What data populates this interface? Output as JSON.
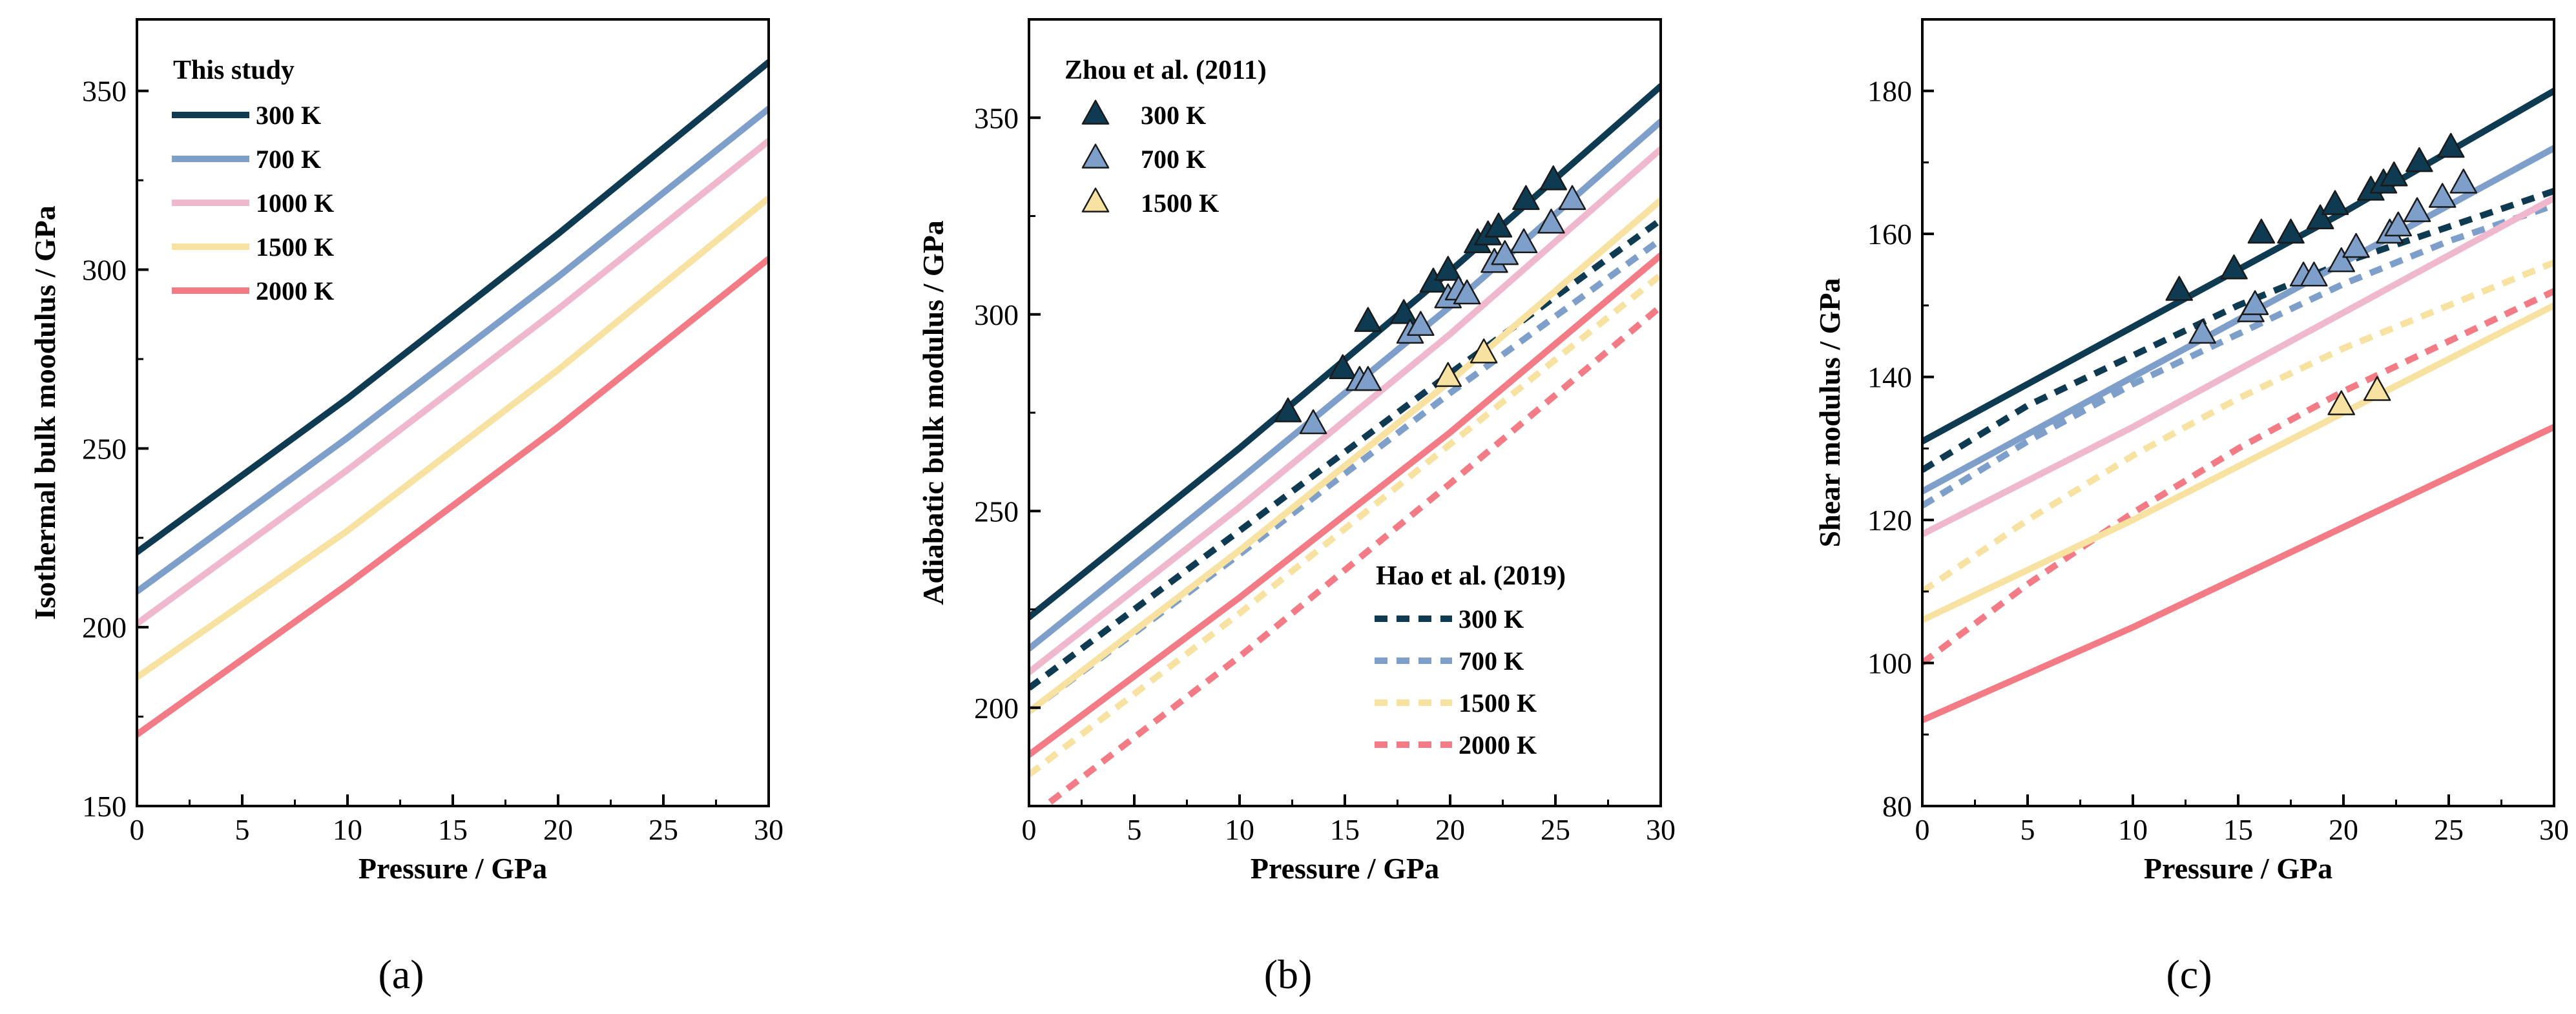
{
  "colors": {
    "300 K": "#0e3a52",
    "700 K": "#7f9fcb",
    "1000 K": "#f0b8ce",
    "1500 K": "#f7e2a1",
    "2000 K": "#f27b85"
  },
  "chart_data": [
    {
      "type": "line",
      "panel": "(a)",
      "xlabel": "Pressure / GPa",
      "ylabel": "Isothermal bulk moodulus / GPa",
      "xlim": [
        0,
        30
      ],
      "ylim": [
        150,
        370
      ],
      "xticks": [
        0,
        5,
        10,
        15,
        20,
        25,
        30
      ],
      "yticks": [
        150,
        200,
        250,
        300,
        350
      ],
      "legend_groups": [
        {
          "title": "This study",
          "position": "top-left",
          "items": [
            "300 K",
            "700 K",
            "1000 K",
            "1500 K",
            "2000 K"
          ],
          "style": "solid"
        }
      ],
      "series": [
        {
          "name": "300 K",
          "style": "solid",
          "x": [
            0,
            10,
            20,
            30
          ],
          "y": [
            221,
            264,
            310,
            358
          ]
        },
        {
          "name": "700 K",
          "style": "solid",
          "x": [
            0,
            10,
            20,
            30
          ],
          "y": [
            210,
            253,
            298,
            345
          ]
        },
        {
          "name": "1000 K",
          "style": "solid",
          "x": [
            0,
            10,
            20,
            30
          ],
          "y": [
            201,
            244,
            289,
            336
          ]
        },
        {
          "name": "1500 K",
          "style": "solid",
          "x": [
            0,
            10,
            20,
            30
          ],
          "y": [
            186,
            227,
            272,
            320
          ]
        },
        {
          "name": "2000 K",
          "style": "solid",
          "x": [
            0,
            10,
            20,
            30
          ],
          "y": [
            170,
            212,
            256,
            303
          ]
        }
      ]
    },
    {
      "type": "line",
      "panel": "(b)",
      "xlabel": "Pressure / GPa",
      "ylabel": "Adiabatic bulk modulus / GPa",
      "xlim": [
        0,
        30
      ],
      "ylim": [
        175,
        375
      ],
      "xticks": [
        0,
        5,
        10,
        15,
        20,
        25,
        30
      ],
      "yticks": [
        200,
        250,
        300,
        350
      ],
      "legend_groups": [
        {
          "title": "Zhou et al. (2011)",
          "position": "top-left",
          "items": [
            "300 K",
            "700 K",
            "1500 K"
          ],
          "style": "triangle"
        },
        {
          "title": "Hao et al. (2019)",
          "position": "bottom-right",
          "items": [
            "300 K",
            "700 K",
            "1500 K",
            "2000 K"
          ],
          "style": "dashed"
        }
      ],
      "series": [
        {
          "name": "300 K",
          "style": "solid",
          "x": [
            0,
            10,
            20,
            30
          ],
          "y": [
            223,
            266,
            311,
            358
          ]
        },
        {
          "name": "700 K",
          "style": "solid",
          "x": [
            0,
            10,
            20,
            30
          ],
          "y": [
            215,
            258,
            302,
            349
          ]
        },
        {
          "name": "1000 K",
          "style": "solid",
          "x": [
            0,
            10,
            20,
            30
          ],
          "y": [
            209,
            251,
            295,
            342
          ]
        },
        {
          "name": "1500 K",
          "style": "solid",
          "x": [
            0,
            10,
            20,
            30
          ],
          "y": [
            199,
            240,
            283,
            329
          ]
        },
        {
          "name": "2000 K",
          "style": "solid",
          "x": [
            0,
            10,
            20,
            30
          ],
          "y": [
            188,
            228,
            270,
            315
          ]
        },
        {
          "name": "300 K",
          "style": "dashed",
          "x": [
            0,
            10,
            20,
            30
          ],
          "y": [
            205,
            245,
            285,
            324
          ]
        },
        {
          "name": "700 K",
          "style": "dashed",
          "x": [
            0,
            10,
            20,
            30
          ],
          "y": [
            199,
            239,
            280,
            319
          ]
        },
        {
          "name": "1500 K",
          "style": "dashed",
          "x": [
            0,
            10,
            20,
            30
          ],
          "y": [
            183,
            224,
            267,
            310
          ]
        },
        {
          "name": "2000 K",
          "style": "dashed",
          "x": [
            1,
            10,
            20,
            30
          ],
          "y": [
            176,
            213,
            257,
            302
          ]
        },
        {
          "name": "300 K",
          "style": "triangle",
          "x": [
            12.3,
            14.9,
            16.1,
            17.8,
            19.2,
            19.9,
            21.3,
            21.8,
            22.3,
            23.6,
            24.9
          ],
          "y": [
            275,
            286,
            298,
            300,
            308,
            311,
            318,
            320,
            322,
            329,
            334
          ]
        },
        {
          "name": "700 K",
          "style": "triangle",
          "x": [
            13.5,
            15.7,
            16.1,
            18.1,
            18.6,
            19.9,
            20.4,
            20.8,
            22.1,
            22.6,
            23.5,
            24.8,
            25.8
          ],
          "y": [
            272,
            283,
            283,
            295,
            297,
            304,
            306,
            305,
            313,
            315,
            318,
            323,
            329
          ]
        },
        {
          "name": "1500 K",
          "style": "triangle",
          "x": [
            19.9,
            21.6
          ],
          "y": [
            284,
            290
          ]
        }
      ]
    },
    {
      "type": "line",
      "panel": "(c)",
      "xlabel": "Pressure / GPa",
      "ylabel": "Shear modulus / GPa",
      "xlim": [
        0,
        30
      ],
      "ylim": [
        80,
        190
      ],
      "xticks": [
        0,
        5,
        10,
        15,
        20,
        25,
        30
      ],
      "yticks": [
        80,
        100,
        120,
        140,
        160,
        180
      ],
      "series": [
        {
          "name": "300 K",
          "style": "solid",
          "x": [
            0,
            10,
            20,
            30
          ],
          "y": [
            131,
            147,
            163,
            180
          ]
        },
        {
          "name": "700 K",
          "style": "solid",
          "x": [
            0,
            10,
            20,
            30
          ],
          "y": [
            124,
            140,
            156,
            172
          ]
        },
        {
          "name": "1000 K",
          "style": "solid",
          "x": [
            0,
            10,
            20,
            30
          ],
          "y": [
            118,
            133,
            149,
            165
          ]
        },
        {
          "name": "1500 K",
          "style": "solid",
          "x": [
            0,
            10,
            20,
            30
          ],
          "y": [
            106,
            120,
            135,
            150
          ]
        },
        {
          "name": "2000 K",
          "style": "solid",
          "x": [
            0,
            10,
            20,
            30
          ],
          "y": [
            92,
            105,
            119,
            133
          ]
        },
        {
          "name": "300 K",
          "style": "dashed",
          "x": [
            0,
            5,
            10,
            15,
            20,
            25,
            30
          ],
          "y": [
            127,
            136,
            143,
            150,
            156,
            161,
            166
          ]
        },
        {
          "name": "700 K",
          "style": "dashed",
          "x": [
            0,
            5,
            10,
            15,
            20,
            25,
            30
          ],
          "y": [
            122,
            131,
            139,
            146,
            153,
            159,
            164
          ]
        },
        {
          "name": "1500 K",
          "style": "dashed",
          "x": [
            0,
            5,
            10,
            15,
            20,
            25,
            30
          ],
          "y": [
            110,
            120,
            129,
            137,
            144,
            150,
            156
          ]
        },
        {
          "name": "2000 K",
          "style": "dashed",
          "x": [
            0,
            5,
            10,
            15,
            20,
            25,
            30
          ],
          "y": [
            100,
            111,
            121,
            130,
            138,
            145,
            152
          ]
        },
        {
          "name": "300 K",
          "style": "triangle",
          "x": [
            12.2,
            14.8,
            16.1,
            17.5,
            18.9,
            19.6,
            21.3,
            21.9,
            22.4,
            23.6,
            25.1
          ],
          "y": [
            152,
            155,
            160,
            160,
            162,
            164,
            166,
            167,
            168,
            170,
            172
          ]
        },
        {
          "name": "700 K",
          "style": "triangle",
          "x": [
            13.3,
            15.6,
            15.8,
            18.1,
            18.6,
            19.9,
            20.6,
            22.2,
            22.6,
            23.5,
            24.7,
            25.7
          ],
          "y": [
            146,
            149,
            150,
            154,
            154,
            156,
            158,
            160,
            161,
            163,
            165,
            167
          ]
        },
        {
          "name": "1500 K",
          "style": "triangle",
          "x": [
            19.9,
            21.6
          ],
          "y": [
            136,
            138
          ]
        }
      ]
    }
  ]
}
